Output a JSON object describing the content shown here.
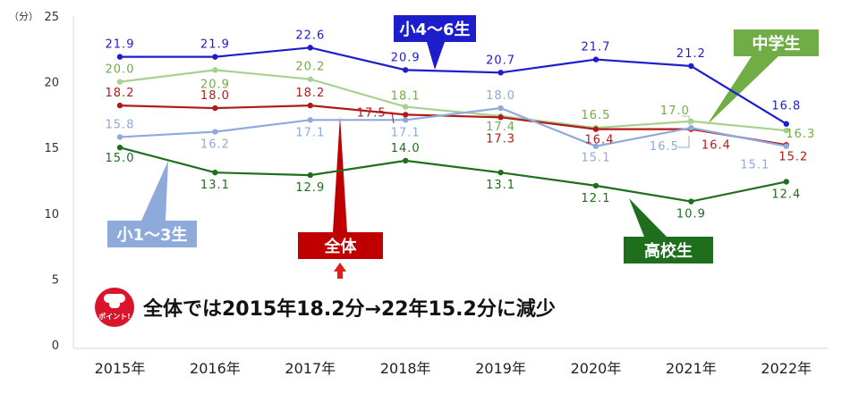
{
  "chart_data": {
    "type": "line",
    "title": "",
    "xlabel": "",
    "ylabel": "（分）",
    "ylim": [
      0,
      25
    ],
    "yticks": [
      0,
      5,
      10,
      15,
      20,
      25
    ],
    "grid": false,
    "categories": [
      "2015年",
      "2016年",
      "2017年",
      "2018年",
      "2019年",
      "2020年",
      "2021年",
      "2022年"
    ],
    "series": [
      {
        "name": "小4〜6生",
        "color": "#1d1dcc",
        "values": [
          21.9,
          21.9,
          22.6,
          20.9,
          20.7,
          21.7,
          21.2,
          16.8
        ]
      },
      {
        "name": "中学生",
        "color": "#a9d18e",
        "values": [
          20.0,
          20.9,
          20.2,
          18.1,
          17.4,
          16.5,
          17.0,
          16.3
        ]
      },
      {
        "name": "全体",
        "color": "#b01a1a",
        "values": [
          18.2,
          18.0,
          18.2,
          17.5,
          17.3,
          16.4,
          16.4,
          15.2
        ]
      },
      {
        "name": "小1〜3生",
        "color": "#8eaadb",
        "values": [
          15.8,
          16.2,
          17.1,
          17.1,
          18.0,
          15.1,
          16.5,
          15.1
        ]
      },
      {
        "name": "高校生",
        "color": "#1e6e1e",
        "values": [
          15.0,
          13.1,
          12.9,
          14.0,
          13.1,
          12.1,
          10.9,
          12.4
        ]
      }
    ]
  },
  "callouts": {
    "s46": "小4〜6生",
    "jhs": "中学生",
    "all": "全体",
    "s13": "小1〜3生",
    "hs": "高校生"
  },
  "note": {
    "icon_label": "ポイント!",
    "text": "全体では2015年18.2分→22年15.2分に減少"
  },
  "colors": {
    "s46": "#1d1dcc",
    "jhs": "#70ad47",
    "all": "#c00000",
    "s13": "#8eaadb",
    "hs": "#1e6e1e",
    "point_icon": "#d9142b"
  }
}
